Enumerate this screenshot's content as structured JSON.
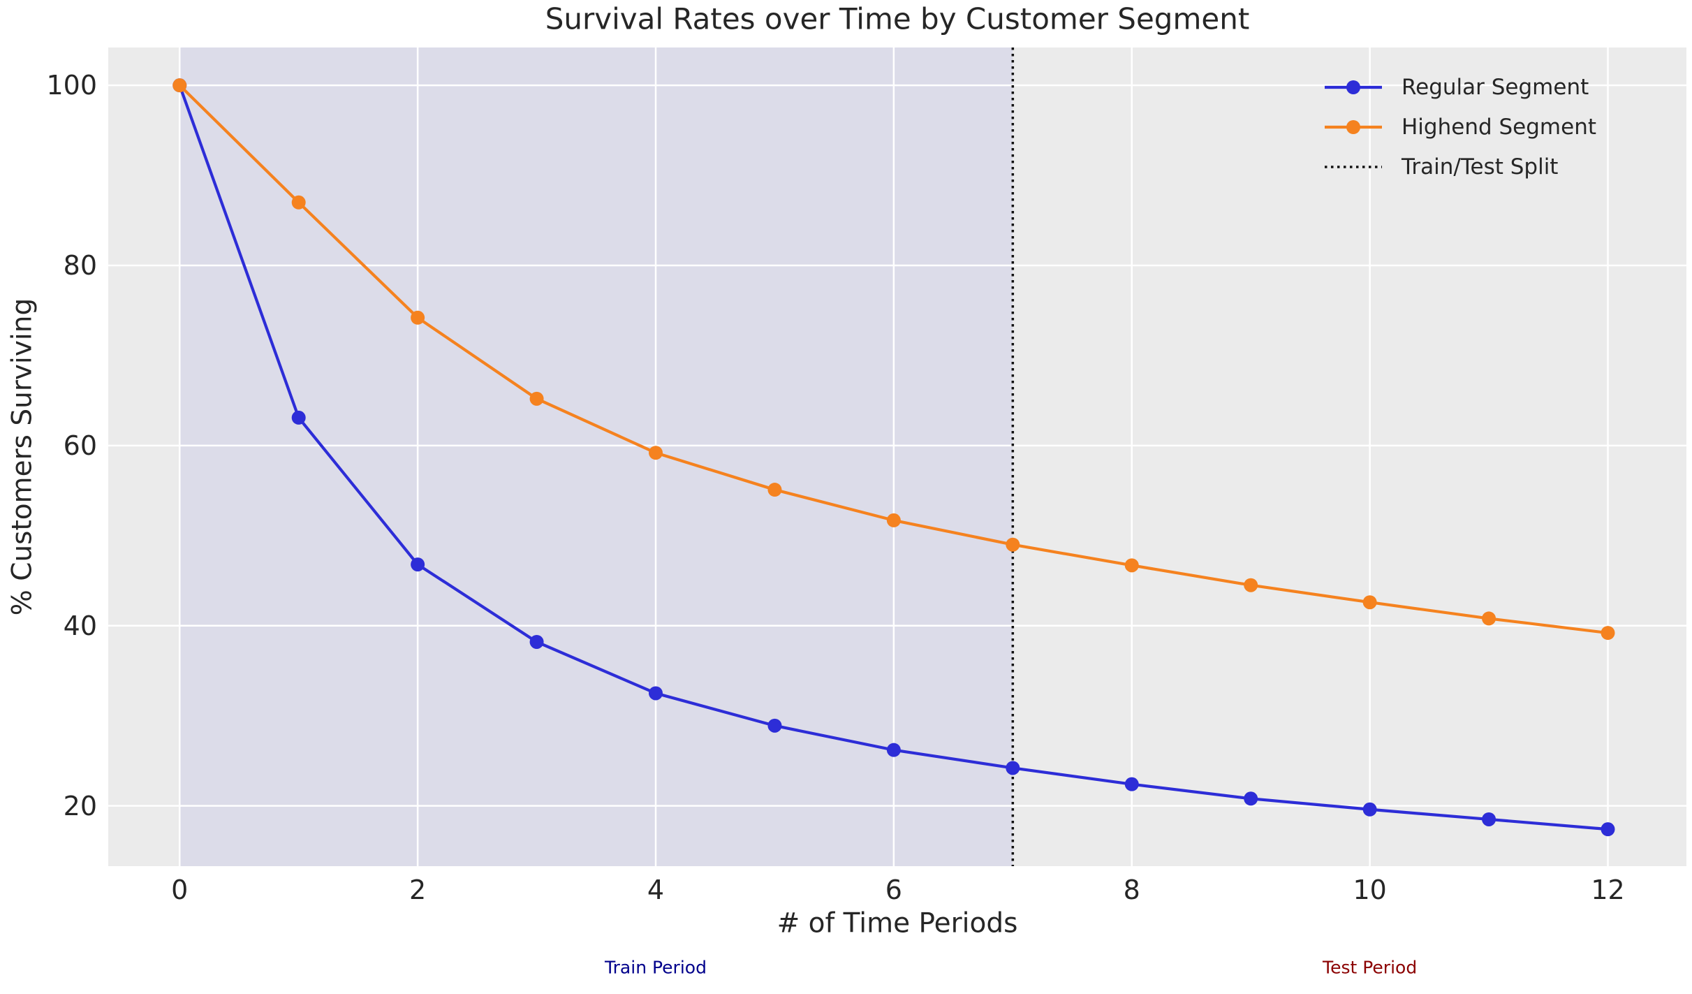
{
  "chart_data": {
    "type": "line",
    "title": "Survival Rates over Time by Customer Segment",
    "xlabel": "# of Time Periods",
    "ylabel": "% Customers Surviving",
    "x": [
      0,
      1,
      2,
      3,
      4,
      5,
      6,
      7,
      8,
      9,
      10,
      11,
      12
    ],
    "series": [
      {
        "name": "Regular Segment",
        "color": "#2d2dd7",
        "values": [
          100,
          63.1,
          46.8,
          38.2,
          32.5,
          28.9,
          26.2,
          24.2,
          22.4,
          20.8,
          19.6,
          18.5,
          17.4
        ]
      },
      {
        "name": "Highend Segment",
        "color": "#f5821f",
        "values": [
          100,
          87.0,
          74.2,
          65.2,
          59.2,
          55.1,
          51.7,
          49.0,
          46.7,
          44.5,
          42.6,
          40.8,
          39.2
        ]
      }
    ],
    "split_line": {
      "x": 7,
      "label": "Train/Test Split",
      "color": "#111111",
      "style": "dotted"
    },
    "xticks": [
      "0",
      "2",
      "4",
      "6",
      "8",
      "10",
      "12"
    ],
    "xtick_values": [
      0,
      2,
      4,
      6,
      8,
      10,
      12
    ],
    "yticks": [
      "20",
      "40",
      "60",
      "80",
      "100"
    ],
    "ytick_values": [
      20,
      40,
      60,
      80,
      100
    ],
    "xlim": [
      -0.6,
      12.66
    ],
    "ylim": [
      13.3,
      104.2
    ],
    "grid": true,
    "grid_color": "#ffffff",
    "axes_bg": "#ebebeb",
    "figure_bg": "#ffffff",
    "text_color": "#262626",
    "legend_position": "upper right",
    "train_region": {
      "x0": 0,
      "x1": 7,
      "color": "#dcdce9",
      "label": "Train Period",
      "label_color": "#00008b",
      "label_x": 4
    },
    "test_region": {
      "label": "Test Period",
      "label_color": "#8b0000",
      "label_x": 10
    },
    "annotations": [
      {
        "text": "Train Period",
        "x": 4,
        "color": "#00008b"
      },
      {
        "text": "Test Period",
        "x": 10,
        "color": "#8b0000"
      }
    ]
  }
}
